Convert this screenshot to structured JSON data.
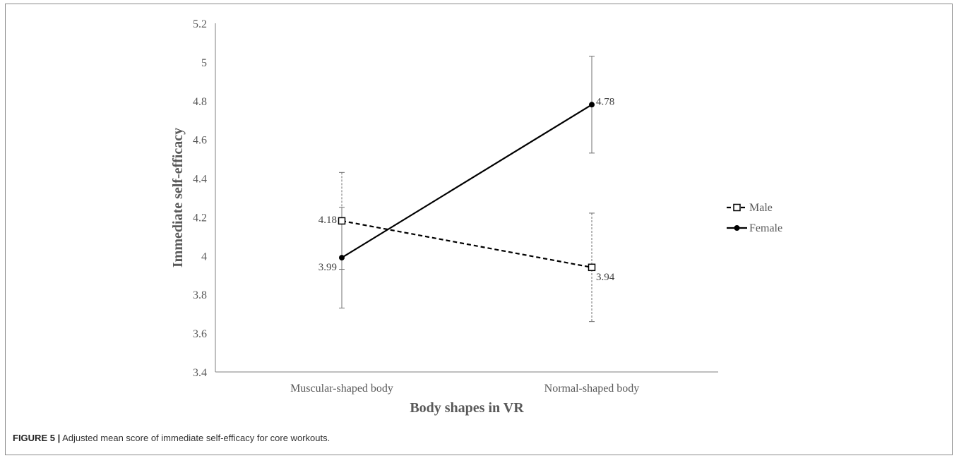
{
  "chart_data": {
    "type": "line",
    "categories": [
      "Muscular-shaped body",
      "Normal-shaped body"
    ],
    "xlabel": "Body shapes in VR",
    "ylabel": "Immediate self-efficacy",
    "ylim": [
      3.4,
      5.2
    ],
    "yticks": [
      "3.4",
      "3.6",
      "3.8",
      "4",
      "4.2",
      "4.4",
      "4.6",
      "4.8",
      "5",
      "5.2"
    ],
    "legend_position": "right",
    "grid": false,
    "series": [
      {
        "name": "Male",
        "values": [
          4.18,
          3.94
        ],
        "labels": [
          "4.18",
          "3.94"
        ],
        "err_low": [
          3.93,
          3.66
        ],
        "err_high": [
          4.43,
          4.22
        ],
        "line_style": "dashed",
        "marker": "open-square",
        "color": "#000000"
      },
      {
        "name": "Female",
        "values": [
          3.99,
          4.78
        ],
        "labels": [
          "3.99",
          "4.78"
        ],
        "err_low": [
          3.73,
          4.53
        ],
        "err_high": [
          4.25,
          5.03
        ],
        "line_style": "solid",
        "marker": "filled-circle",
        "color": "#000000"
      }
    ]
  },
  "caption": {
    "figure_label": "FIGURE 5 |",
    "text": " Adjusted mean score of immediate self-efficacy for core workouts."
  }
}
